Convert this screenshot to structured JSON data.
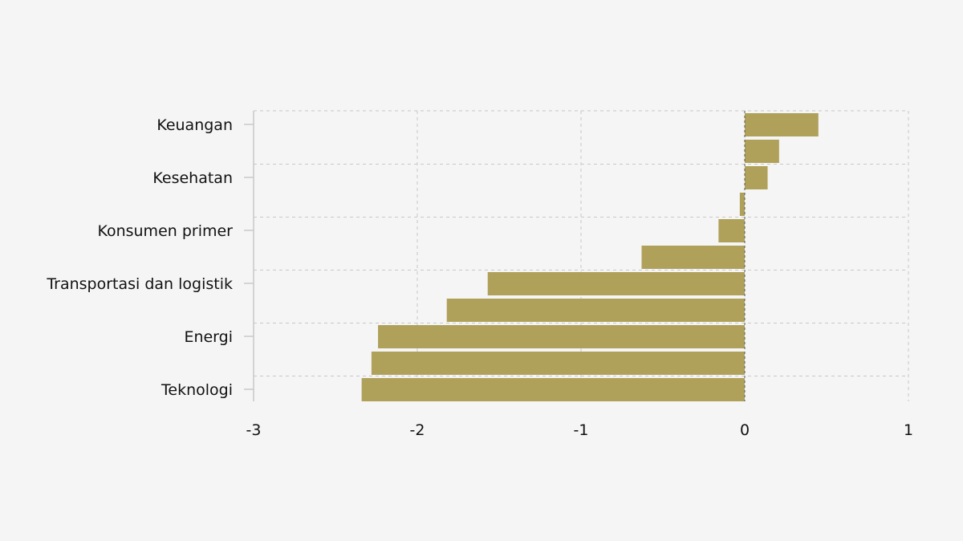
{
  "chart_data": {
    "type": "bar",
    "orientation": "horizontal",
    "title": "",
    "xlabel": "",
    "ylabel": "",
    "xlim": [
      -3,
      1
    ],
    "x_ticks": [
      "-3",
      "-2",
      "-1",
      "0",
      "1"
    ],
    "y_tick_labels": [
      "Keuangan",
      "Kesehatan",
      "Konsumen primer",
      "Transportasi dan logistik",
      "Energi",
      "Teknologi"
    ],
    "bar_values": [
      0.45,
      0.21,
      0.14,
      -0.03,
      -0.16,
      -0.63,
      -1.57,
      -1.82,
      -2.24,
      -2.28,
      -2.34
    ],
    "grid": true,
    "colors": {
      "bar": "#b0a15a",
      "grid": "#c8c8c8",
      "zero_line": "#555555",
      "background": "#f5f5f5"
    }
  }
}
